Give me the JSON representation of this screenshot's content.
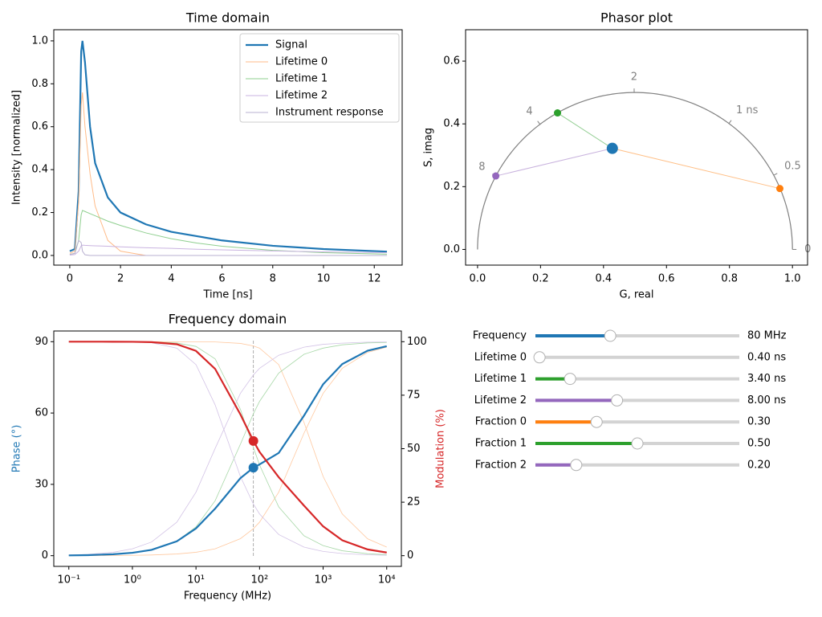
{
  "chart_data": [
    {
      "type": "line",
      "title": "Time domain",
      "xlabel": "Time [ns]",
      "ylabel": "Intensity [normalized]",
      "x": [
        0,
        0.2,
        0.35,
        0.45,
        0.5,
        0.6,
        0.8,
        1,
        1.5,
        2,
        3,
        4,
        5,
        6,
        8,
        10,
        12.5
      ],
      "series": [
        {
          "name": "Signal",
          "color": "#1f77b4",
          "linewidth": 2.2,
          "values": [
            0.02,
            0.03,
            0.3,
            0.95,
            1.0,
            0.9,
            0.6,
            0.43,
            0.27,
            0.2,
            0.145,
            0.11,
            0.09,
            0.07,
            0.045,
            0.03,
            0.018
          ]
        },
        {
          "name": "Lifetime 0",
          "color": "#ffbb88",
          "linewidth": 1,
          "values": [
            0.01,
            0.02,
            0.25,
            0.7,
            0.76,
            0.6,
            0.38,
            0.23,
            0.07,
            0.02,
            0,
            0,
            0,
            0,
            0,
            0,
            0
          ]
        },
        {
          "name": "Lifetime 1",
          "color": "#8fcf8f",
          "linewidth": 1,
          "values": [
            0.005,
            0.01,
            0.07,
            0.19,
            0.21,
            0.205,
            0.195,
            0.185,
            0.16,
            0.14,
            0.105,
            0.078,
            0.058,
            0.043,
            0.024,
            0.013,
            0.006
          ]
        },
        {
          "name": "Lifetime 2",
          "color": "#c9b3e0",
          "linewidth": 1,
          "values": [
            0.002,
            0.004,
            0.02,
            0.045,
            0.048,
            0.047,
            0.046,
            0.045,
            0.043,
            0.04,
            0.036,
            0.033,
            0.029,
            0.026,
            0.021,
            0.017,
            0.013
          ]
        },
        {
          "name": "Instrument response",
          "color": "#b8b0d0",
          "linewidth": 1,
          "values": [
            0.005,
            0.01,
            0.07,
            0.06,
            0.02,
            0.003,
            0,
            0,
            0,
            0,
            0,
            0,
            0,
            0,
            0,
            0,
            0
          ]
        }
      ],
      "xlim": [
        -0.63,
        13.1
      ],
      "ylim": [
        -0.045,
        1.052
      ],
      "xticks": [
        0,
        2,
        4,
        6,
        8,
        10,
        12
      ],
      "yticks": [
        {
          "value": 0,
          "label": "0.0"
        },
        0.2,
        0.4,
        0.6,
        0.8,
        {
          "value": 1,
          "label": "1.0"
        }
      ],
      "legend": "upper right"
    },
    {
      "type": "phasor",
      "title": "Phasor plot",
      "xlabel": "G, real",
      "ylabel": "S, imag",
      "points": {
        "x": [
          0.428,
          0.96,
          0.254,
          0.058
        ],
        "values": [
          0.322,
          0.194,
          0.435,
          0.234
        ],
        "colors": [
          "#1f77b4",
          "#ff7f0e",
          "#2ca02c",
          "#9467bd"
        ]
      },
      "xlim": [
        -0.038,
        1.048
      ],
      "ylim": [
        -0.05,
        0.7
      ],
      "xticks": [
        {
          "value": 0,
          "label": "0.0"
        },
        0.2,
        0.4,
        0.6,
        0.8,
        {
          "value": 1,
          "label": "1.0"
        }
      ],
      "yticks": [
        {
          "value": 0,
          "label": "0.0"
        },
        0.2,
        0.4,
        0.6
      ],
      "semicircle_ticks": [
        0,
        0.5,
        {
          "value": 1,
          "label": "1 ns"
        },
        2,
        4,
        8
      ],
      "semicircle_color": "#808080"
    },
    {
      "type": "frequency",
      "title": "Frequency domain",
      "xlabel": "Frequency (MHz)",
      "ylabel": "Phase (°)",
      "y2label": "Modulation (%)",
      "ylabel_color": "#1f77b4",
      "y2label_color": "#d62728",
      "xscale": "log",
      "x": [
        0.1,
        0.2,
        0.5,
        1,
        2,
        5,
        10,
        20,
        50,
        80,
        100,
        200,
        500,
        1000,
        2000,
        5000,
        10000
      ],
      "series": [
        {
          "color": "#ffc9a0",
          "linewidth": 0.8,
          "values": [
            0.01,
            0.03,
            0.07,
            0.14,
            0.29,
            0.72,
            1.44,
            2.88,
            7.16,
            11.37,
            14.1,
            26.7,
            51.5,
            68.3,
            78.8,
            85.5,
            87.7
          ]
        },
        {
          "color": "#ffc9a0",
          "linewidth": 0.8,
          "axis": "y2",
          "values": [
            100,
            100,
            100,
            100,
            100,
            99.99,
            99.97,
            99.87,
            99.2,
            98.0,
            97.0,
            89.3,
            62.3,
            37.0,
            19.5,
            7.9,
            4.0
          ]
        },
        {
          "color": "#a8d8a8",
          "linewidth": 0.8,
          "values": [
            0.12,
            0.24,
            0.61,
            1.22,
            2.45,
            6.1,
            12.1,
            23.1,
            46.9,
            59.7,
            64.9,
            76.8,
            84.7,
            87.3,
            88.7,
            89.5,
            89.7
          ]
        },
        {
          "color": "#a8d8a8",
          "linewidth": 0.8,
          "axis": "y2",
          "values": [
            100,
            100,
            99.99,
            99.98,
            99.9,
            99.4,
            97.8,
            92.0,
            68.4,
            50.5,
            42.4,
            22.8,
            9.3,
            4.7,
            2.3,
            0.94,
            0.47
          ]
        },
        {
          "color": "#d3c3e6",
          "linewidth": 0.8,
          "values": [
            0.29,
            0.58,
            1.44,
            2.88,
            5.74,
            14.1,
            26.7,
            45.1,
            68.3,
            76.0,
            78.8,
            84.3,
            87.7,
            88.9,
            89.4,
            89.8,
            89.9
          ]
        },
        {
          "color": "#d3c3e6",
          "linewidth": 0.8,
          "axis": "y2",
          "values": [
            100,
            100,
            99.97,
            99.87,
            99.5,
            97.0,
            89.3,
            70.5,
            37.0,
            24.1,
            19.5,
            9.9,
            4.0,
            2.0,
            1.0,
            0.4,
            0.2
          ]
        },
        {
          "color": "#1f77b4",
          "linewidth": 2.2,
          "markers": true,
          "values": [
            0.12,
            0.24,
            0.62,
            1.23,
            2.45,
            6.04,
            11.46,
            19.8,
            32.6,
            37.0,
            38.4,
            43.2,
            58.9,
            72.1,
            80.6,
            86.2,
            88.1
          ]
        },
        {
          "color": "#d62728",
          "linewidth": 2.2,
          "markers": true,
          "axis": "y2",
          "values": [
            100,
            100,
            99.99,
            99.95,
            99.8,
            98.8,
            95.7,
            87.3,
            66.0,
            53.6,
            48.5,
            36.7,
            23.4,
            13.7,
            7.2,
            2.93,
            1.47
          ]
        }
      ],
      "xlim": [
        0.058,
        17000
      ],
      "ylim": [
        -4.5,
        94.5
      ],
      "y2lim": [
        -5,
        105
      ],
      "xticks": [
        {
          "value": 0.1,
          "label": "10⁻¹"
        },
        {
          "value": 1,
          "label": "10⁰"
        },
        {
          "value": 10,
          "label": "10¹"
        },
        {
          "value": 100,
          "label": "10²"
        },
        {
          "value": 1000,
          "label": "10³"
        },
        {
          "value": 10000,
          "label": "10⁴"
        }
      ],
      "yticks": [
        0,
        30,
        60,
        90
      ],
      "y2ticks": [
        0,
        25,
        50,
        75,
        100
      ]
    }
  ],
  "sliders": [
    {
      "label": "Frequency",
      "value": 80,
      "value_label": "80 MHz",
      "lim": [
        0,
        218
      ],
      "color": "#1f77b4"
    },
    {
      "label": "Lifetime 0",
      "value": 0.4,
      "value_label": "0.40 ns",
      "lim": [
        0,
        20
      ],
      "color": "#ff7f0e"
    },
    {
      "label": "Lifetime 1",
      "value": 3.4,
      "value_label": "3.40 ns",
      "lim": [
        0,
        20
      ],
      "color": "#2ca02c"
    },
    {
      "label": "Lifetime 2",
      "value": 8,
      "value_label": "8.00 ns",
      "lim": [
        0,
        20
      ],
      "color": "#9467bd"
    },
    {
      "label": "Fraction 0",
      "value": 0.3,
      "value_label": "0.30",
      "lim": [
        0,
        1
      ],
      "color": "#ff7f0e"
    },
    {
      "label": "Fraction 1",
      "value": 0.5,
      "value_label": "0.50",
      "lim": [
        0,
        1
      ],
      "color": "#2ca02c"
    },
    {
      "label": "Fraction 2",
      "value": 0.2,
      "value_label": "0.20",
      "lim": [
        0,
        1
      ],
      "color": "#9467bd"
    }
  ]
}
